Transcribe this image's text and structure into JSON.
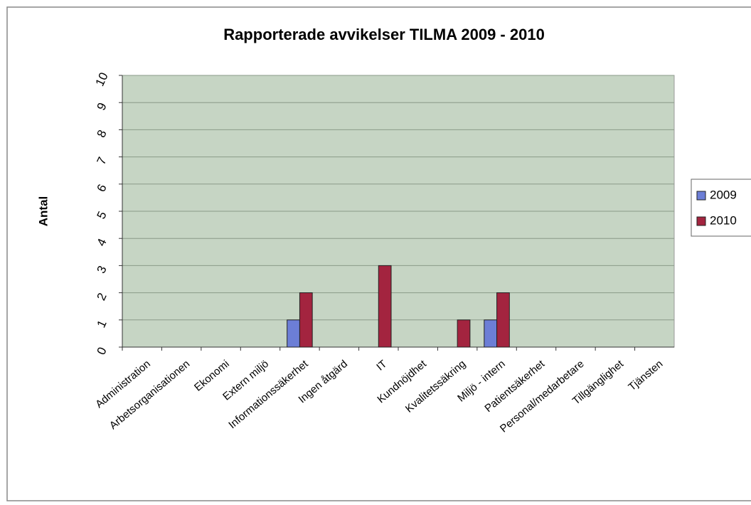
{
  "chart_data": {
    "type": "bar",
    "title": "Rapporterade avvikelser TILMA  2009 - 2010",
    "y_label": "Antal",
    "categories": [
      "Administration",
      "Arbetsorganisationen",
      "Ekonomi",
      "Extern miljö",
      "Informationssäkerhet",
      "Ingen åtgärd",
      "IT",
      "Kundnöjdhet",
      "Kvalitetssäkring",
      "Miljö - intern",
      "Patientsäkerhet",
      "Personal/medarbetare",
      "Tillgänglighet",
      "Tjänsten"
    ],
    "series": [
      {
        "name": "2009",
        "color": "#6c7ed6",
        "values": [
          0,
          0,
          0,
          0,
          1,
          0,
          0,
          0,
          0,
          1,
          0,
          0,
          0,
          0
        ]
      },
      {
        "name": "2010",
        "color": "#a3243f",
        "values": [
          0,
          0,
          0,
          0,
          2,
          0,
          3,
          0,
          1,
          2,
          0,
          0,
          0,
          0
        ]
      }
    ],
    "ylim": [
      0,
      10
    ],
    "yticks": [
      0,
      1,
      2,
      3,
      4,
      5,
      6,
      7,
      8,
      9,
      10
    ],
    "grid": true,
    "legend": "right"
  }
}
